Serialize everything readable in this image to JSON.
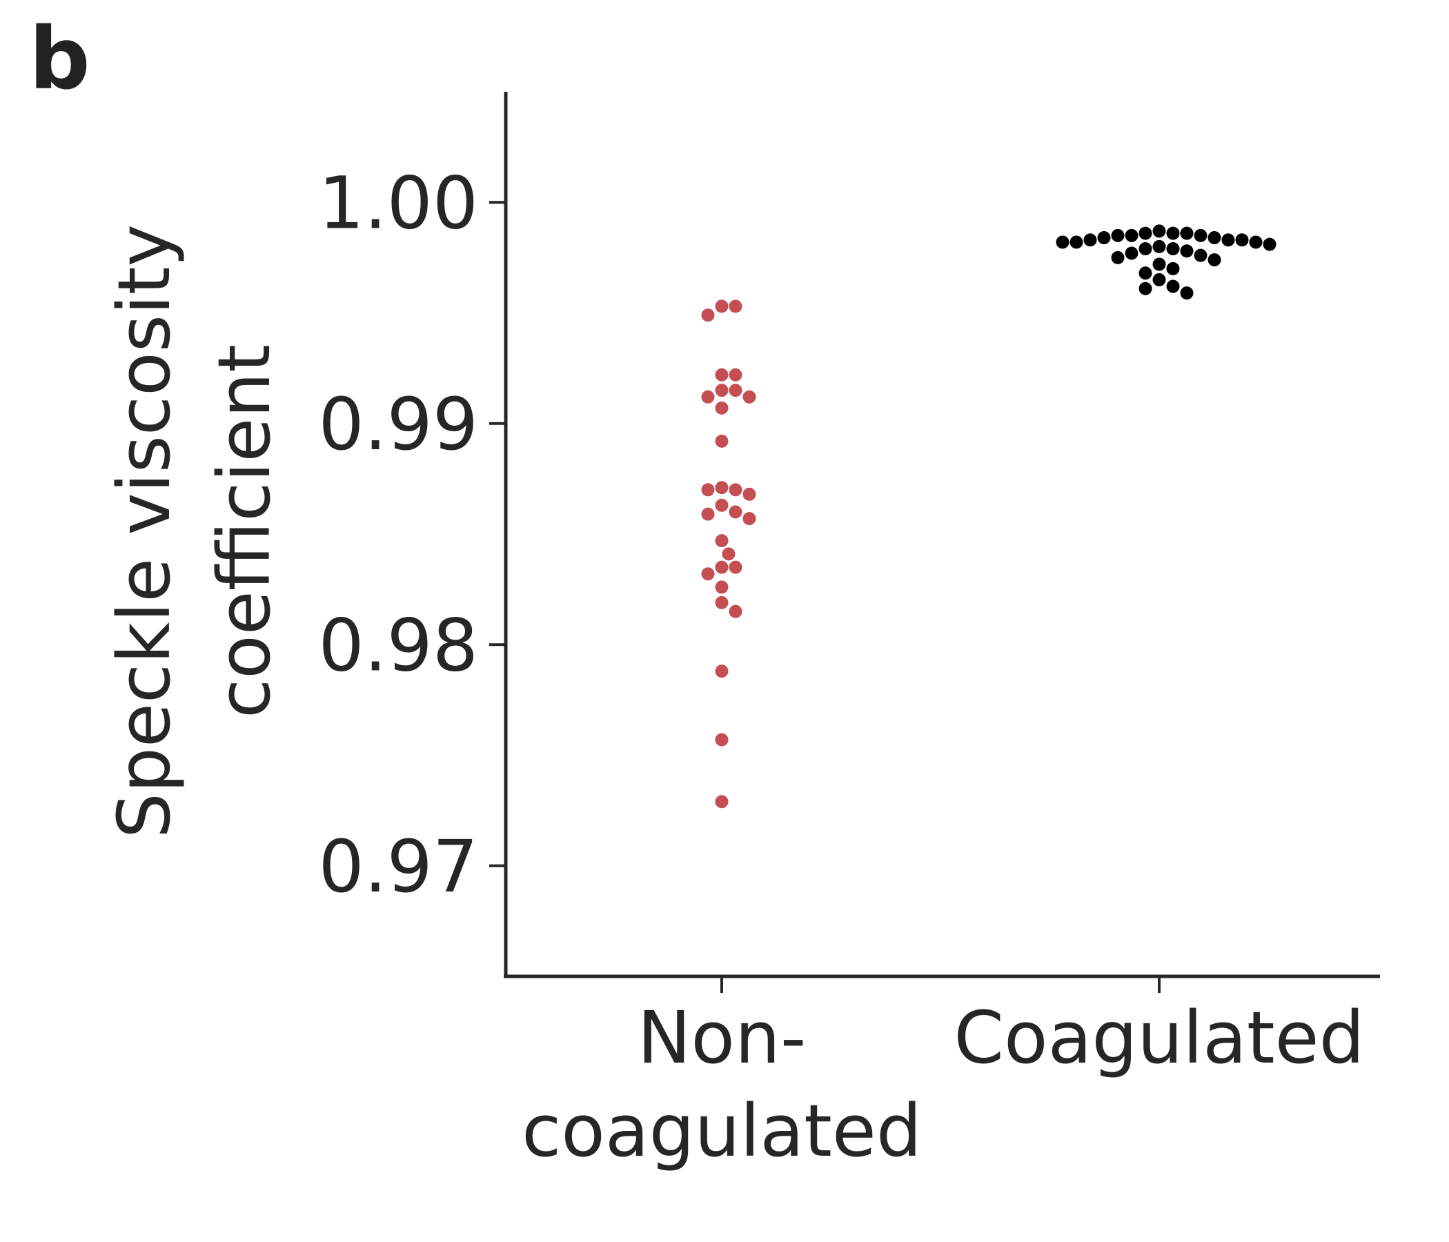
{
  "panel_label": "b",
  "colors": {
    "axis": "#262626",
    "non_coagulated": "#c44e52",
    "coagulated": "#000000"
  },
  "chart_data": {
    "type": "scatter",
    "subtype": "swarm",
    "title": "",
    "ylabel_lines": [
      "Speckle viscosity",
      "coefficient"
    ],
    "ylim": [
      0.965,
      1.005
    ],
    "yticks": [
      0.97,
      0.98,
      0.99,
      1.0
    ],
    "ytick_labels": [
      "0.97",
      "0.98",
      "0.99",
      "1.00"
    ],
    "categories": [
      {
        "key": "non_coagulated",
        "label_lines": [
          "Non-",
          "coagulated"
        ]
      },
      {
        "key": "coagulated",
        "label_lines": [
          "Coagulated"
        ]
      }
    ],
    "series": [
      {
        "category": "non_coagulated",
        "color": "#c44e52",
        "values": [
          0.9953,
          0.9953,
          0.9949,
          0.9922,
          0.9922,
          0.9915,
          0.9915,
          0.9912,
          0.9912,
          0.9907,
          0.9892,
          0.9871,
          0.987,
          0.987,
          0.9868,
          0.9863,
          0.986,
          0.9859,
          0.9857,
          0.9847,
          0.9841,
          0.9835,
          0.9835,
          0.9832,
          0.9826,
          0.9819,
          0.9815,
          0.9788,
          0.9757,
          0.9729
        ]
      },
      {
        "category": "coagulated",
        "color": "#000000",
        "values": [
          0.9987,
          0.9986,
          0.9986,
          0.9986,
          0.9985,
          0.9985,
          0.9985,
          0.9984,
          0.9984,
          0.9983,
          0.9983,
          0.9983,
          0.9982,
          0.9982,
          0.9982,
          0.9981,
          0.998,
          0.9979,
          0.9979,
          0.9978,
          0.9977,
          0.9976,
          0.9975,
          0.9974,
          0.9972,
          0.997,
          0.9968,
          0.9965,
          0.9962,
          0.9961,
          0.9959
        ]
      }
    ]
  }
}
